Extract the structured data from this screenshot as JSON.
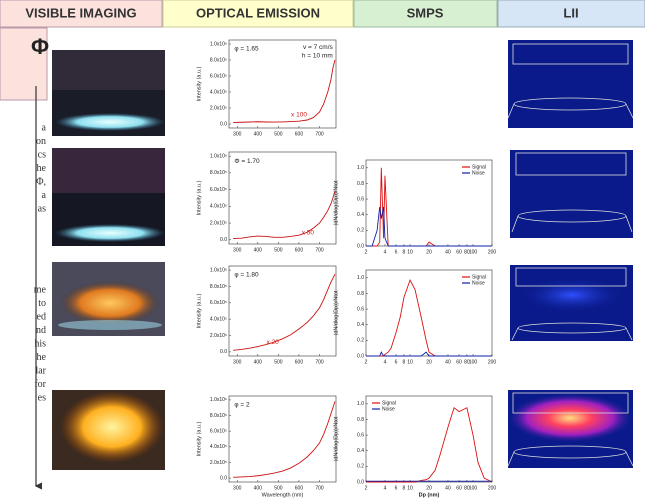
{
  "headers": [
    "VISIBLE IMAGING",
    "OPTICAL EMISSION",
    "SMPS",
    "LII"
  ],
  "phi_symbol": "Φ",
  "side_text": [
    "a",
    "on",
    "cs",
    "he",
    "Φ,",
    "a",
    "as",
    "me",
    "to",
    "ed",
    "nd",
    "his",
    "he",
    "lar",
    "for",
    "es"
  ],
  "chart_data": [
    {
      "type": "line",
      "ylabel": "Intensity (a.u.)",
      "annotations": [
        {
          "text": "φ = 1.65"
        },
        {
          "text": "v = 7 cm/s"
        },
        {
          "text": "h = 10 mm"
        },
        {
          "text": "x 100",
          "color": "#d02020"
        }
      ],
      "x": [
        280,
        320,
        360,
        400,
        440,
        480,
        520,
        560,
        600,
        640,
        670,
        700,
        720,
        740,
        755,
        765,
        775
      ],
      "series": [
        {
          "color": "#cc1111",
          "values": [
            20000,
            22000,
            25000,
            28000,
            25000,
            24000,
            26000,
            30000,
            35000,
            50000,
            80000,
            150000,
            250000,
            400000,
            550000,
            700000,
            800000
          ]
        }
      ],
      "xlim": [
        260,
        780
      ],
      "ylim": [
        -50000,
        1050000
      ],
      "xticks": [
        300,
        400,
        500,
        600,
        700
      ],
      "yticks": [
        {
          "value": 0,
          "label": "0.0"
        },
        {
          "value": 200000,
          "label": "2.0x10⁵"
        },
        {
          "value": 400000,
          "label": "4.0x10⁵"
        },
        {
          "value": 600000,
          "label": "6.0x10⁵"
        },
        {
          "value": 800000,
          "label": "8.0x10⁵"
        },
        {
          "value": 1000000,
          "label": "1.0x10⁶"
        }
      ]
    },
    {
      "type": "line",
      "ylabel": "Intensity (a.u.)",
      "annotations": [
        {
          "text": "Φ = 1.70"
        },
        {
          "text": "x 50",
          "color": "#d02020"
        }
      ],
      "x": [
        280,
        320,
        360,
        400,
        440,
        480,
        520,
        560,
        600,
        640,
        670,
        700,
        720,
        740,
        755,
        765,
        775
      ],
      "series": [
        {
          "color": "#cc1111",
          "values": [
            15000,
            20000,
            35000,
            45000,
            40000,
            30000,
            30000,
            40000,
            55000,
            90000,
            140000,
            200000,
            270000,
            350000,
            430000,
            500000,
            580000
          ]
        }
      ],
      "xlim": [
        260,
        780
      ],
      "ylim": [
        -50000,
        1050000
      ],
      "xticks": [
        300,
        400,
        500,
        600,
        700
      ],
      "yticks": [
        {
          "value": 0,
          "label": "0.0"
        },
        {
          "value": 200000,
          "label": "2.0x10⁵"
        },
        {
          "value": 400000,
          "label": "4.0x10⁵"
        },
        {
          "value": 600000,
          "label": "6.0x10⁵"
        },
        {
          "value": 800000,
          "label": "8.0x10⁵"
        },
        {
          "value": 1000000,
          "label": "1.0x10⁶"
        }
      ]
    },
    {
      "type": "line",
      "ylabel": "Intensity (a.u.)",
      "annotations": [
        {
          "text": "φ = 1.80"
        },
        {
          "text": "x 20",
          "color": "#d02020"
        }
      ],
      "x": [
        280,
        320,
        360,
        400,
        440,
        480,
        520,
        560,
        600,
        640,
        670,
        700,
        720,
        740,
        755,
        765,
        775
      ],
      "series": [
        {
          "color": "#cc1111",
          "values": [
            20000,
            30000,
            45000,
            65000,
            90000,
            120000,
            160000,
            210000,
            280000,
            360000,
            440000,
            540000,
            640000,
            760000,
            850000,
            900000,
            950000
          ]
        }
      ],
      "xlim": [
        260,
        780
      ],
      "ylim": [
        -50000,
        1050000
      ],
      "xticks": [
        300,
        400,
        500,
        600,
        700
      ],
      "yticks": [
        {
          "value": 0,
          "label": "0.0"
        },
        {
          "value": 200000,
          "label": "2.0x10⁵"
        },
        {
          "value": 400000,
          "label": "4.0x10⁵"
        },
        {
          "value": 600000,
          "label": "6.0x10⁵"
        },
        {
          "value": 800000,
          "label": "8.0x10⁵"
        },
        {
          "value": 1000000,
          "label": "1.0x10⁶"
        }
      ]
    },
    {
      "type": "line",
      "ylabel": "Intensity (a.u.)",
      "xlabel": "Wavelength (nm)",
      "annotations": [
        {
          "text": "φ = 2"
        }
      ],
      "x": [
        280,
        320,
        360,
        400,
        440,
        480,
        520,
        560,
        600,
        640,
        670,
        700,
        720,
        740,
        755,
        765,
        775
      ],
      "series": [
        {
          "color": "#cc1111",
          "values": [
            10000,
            15000,
            20000,
            30000,
            45000,
            65000,
            90000,
            130000,
            190000,
            270000,
            350000,
            450000,
            560000,
            700000,
            820000,
            900000,
            980000
          ]
        }
      ],
      "xlim": [
        260,
        780
      ],
      "ylim": [
        -50000,
        1050000
      ],
      "xticks": [
        300,
        400,
        500,
        600,
        700
      ],
      "yticks": [
        {
          "value": 0,
          "label": "0.0"
        },
        {
          "value": 200000,
          "label": "2.0x10⁵"
        },
        {
          "value": 400000,
          "label": "4.0x10⁵"
        },
        {
          "value": 600000,
          "label": "6.0x10⁵"
        },
        {
          "value": 800000,
          "label": "8.0x10⁵"
        },
        {
          "value": 1000000,
          "label": "1.0x10⁶"
        }
      ]
    },
    {
      "type": "line",
      "ylabel": "(dN/dlog(Dp))/Ntot",
      "log_x": true,
      "legend": "upper right",
      "x": [
        2,
        2.5,
        3,
        3.3,
        3.5,
        3.8,
        4,
        4.5,
        5,
        6,
        7,
        8,
        10,
        12,
        15,
        18,
        20,
        25,
        30,
        40,
        50,
        60,
        80,
        100,
        120,
        150,
        200
      ],
      "series": [
        {
          "name": "Signal",
          "color": "#dd1111",
          "values": [
            0,
            0,
            0,
            0.05,
            1.0,
            0.1,
            0.9,
            0,
            0,
            0,
            0,
            0,
            0,
            0,
            0,
            0,
            0.05,
            0,
            0,
            0,
            0,
            0,
            0,
            0,
            0,
            0,
            0
          ]
        },
        {
          "name": "Noise",
          "color": "#1122aa",
          "values": [
            0,
            0,
            0.2,
            0.5,
            0.35,
            0.5,
            0.1,
            0,
            0,
            0,
            0,
            0,
            0,
            0,
            0,
            0,
            0,
            0,
            0,
            0,
            0,
            0,
            0,
            0,
            0,
            0,
            0
          ]
        }
      ],
      "xlim": [
        2,
        200
      ],
      "ylim": [
        0,
        1.1
      ],
      "xticks": [
        2,
        4,
        6,
        8,
        10,
        20,
        40,
        60,
        80,
        100,
        200
      ],
      "yticks": [
        {
          "value": 0,
          "label": "0.0"
        },
        0.2,
        0.4,
        0.6,
        0.8,
        {
          "value": 1,
          "label": "1.0"
        }
      ]
    },
    {
      "type": "line",
      "ylabel": "(dN/dlog(Dp))/Ntot",
      "log_x": true,
      "legend": "upper right",
      "x": [
        2,
        2.5,
        3,
        3.3,
        3.5,
        3.8,
        4,
        4.5,
        5,
        6,
        7,
        8,
        10,
        12,
        15,
        18,
        20,
        25,
        30,
        40,
        50,
        60,
        80,
        100,
        120,
        150,
        200
      ],
      "series": [
        {
          "name": "Signal",
          "color": "#dd1111",
          "values": [
            0,
            0,
            0,
            0,
            0,
            0,
            0.02,
            0.05,
            0.1,
            0.3,
            0.5,
            0.75,
            0.97,
            0.85,
            0.5,
            0.2,
            0.05,
            0,
            0,
            0,
            0,
            0,
            0,
            0,
            0,
            0,
            0
          ]
        },
        {
          "name": "Noise",
          "color": "#1122aa",
          "values": [
            0,
            0,
            0,
            0,
            0.05,
            0,
            0,
            0,
            0,
            0,
            0,
            0,
            0,
            0,
            0,
            0.05,
            0,
            0,
            0,
            0,
            0,
            0,
            0,
            0,
            0,
            0,
            0
          ]
        }
      ],
      "xlim": [
        2,
        200
      ],
      "ylim": [
        0,
        1.1
      ],
      "xticks": [
        2,
        4,
        6,
        8,
        10,
        20,
        40,
        60,
        80,
        100,
        200
      ],
      "yticks": [
        {
          "value": 0,
          "label": "0.0"
        },
        0.2,
        0.4,
        0.6,
        0.8,
        {
          "value": 1,
          "label": "1.0"
        }
      ]
    },
    {
      "type": "line",
      "ylabel": "(dN/dlog(Dp))/Ntot",
      "xlabel": "Dp (nm)",
      "log_x": true,
      "legend": "upper left",
      "x": [
        2,
        2.5,
        3,
        3.3,
        3.5,
        3.8,
        4,
        4.5,
        5,
        6,
        7,
        8,
        10,
        12,
        15,
        18,
        20,
        25,
        30,
        40,
        50,
        60,
        80,
        100,
        120,
        150,
        200
      ],
      "series": [
        {
          "name": "Signal",
          "color": "#dd1111",
          "values": [
            0,
            0,
            0,
            0,
            0,
            0,
            0,
            0,
            0,
            0,
            0,
            0,
            0,
            0,
            0.02,
            0.03,
            0.05,
            0.15,
            0.35,
            0.7,
            0.95,
            0.9,
            0.95,
            0.6,
            0.25,
            0.05,
            0
          ]
        },
        {
          "name": "Noise",
          "color": "#1122aa",
          "values": [
            0.01,
            0.01,
            0.01,
            0.01,
            0.01,
            0.01,
            0.01,
            0.01,
            0.01,
            0.01,
            0.01,
            0.01,
            0.01,
            0.01,
            0.01,
            0.01,
            0.01,
            0.01,
            0.01,
            0.01,
            0.01,
            0.01,
            0.01,
            0.01,
            0.01,
            0.01,
            0.01
          ]
        }
      ],
      "xlim": [
        2,
        200
      ],
      "ylim": [
        0,
        1.1
      ],
      "xticks": [
        2,
        4,
        6,
        8,
        10,
        20,
        40,
        60,
        80,
        100,
        200
      ],
      "yticks": [
        {
          "value": 0,
          "label": "0.0"
        },
        0.2,
        0.4,
        0.6,
        0.8,
        {
          "value": 1,
          "label": "1.0"
        }
      ]
    }
  ]
}
